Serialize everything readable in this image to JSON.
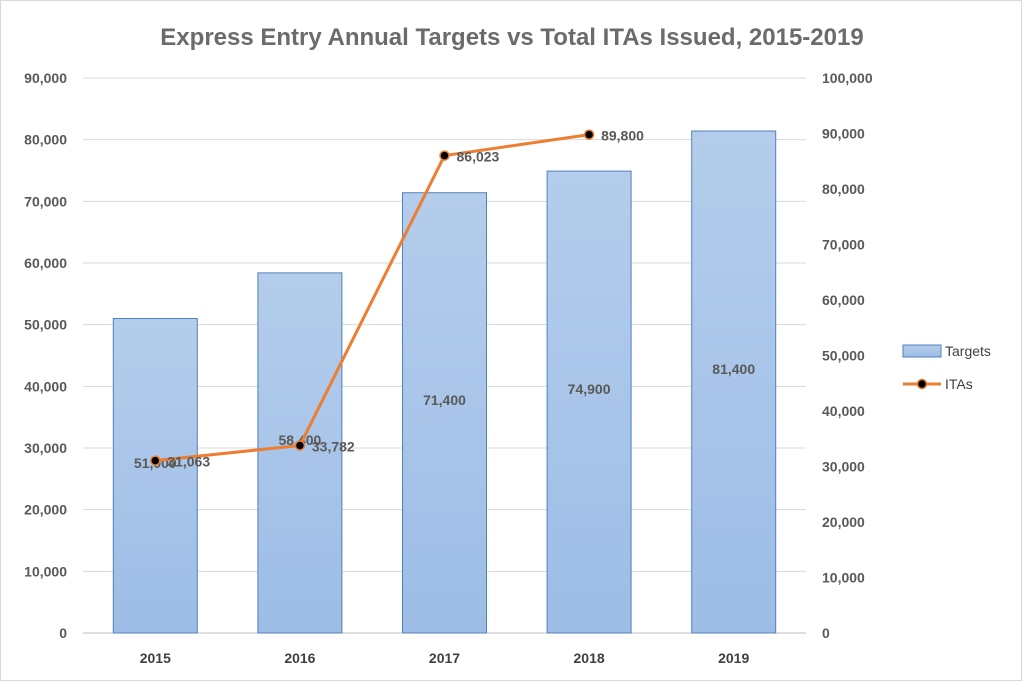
{
  "chart_data": {
    "type": "bar",
    "title": "Express Entry Annual Targets vs Total ITAs Issued, 2015-2019",
    "categories": [
      "2015",
      "2016",
      "2017",
      "2018",
      "2019"
    ],
    "series": [
      {
        "name": "Targets",
        "type": "bar",
        "axis": "left",
        "values": [
          51000,
          58400,
          71400,
          74900,
          81400
        ],
        "labels": [
          "51,000",
          "58,400",
          "71,400",
          "74,900",
          "81,400"
        ],
        "color": "#9dbde6",
        "edge_color": "#4f81bd"
      },
      {
        "name": "ITAs",
        "type": "line",
        "axis": "right",
        "values": [
          31063,
          33782,
          86023,
          89800,
          null
        ],
        "labels": [
          "31,063",
          "33,782",
          "86,023",
          "89,800",
          ""
        ],
        "color": "#ed7d31",
        "marker_color": "#000000"
      }
    ],
    "y_left": {
      "min": 0,
      "max": 90000,
      "step": 10000,
      "ticks": [
        "0",
        "10,000",
        "20,000",
        "30,000",
        "40,000",
        "50,000",
        "60,000",
        "70,000",
        "80,000",
        "90,000"
      ]
    },
    "y_right": {
      "min": 0,
      "max": 100000,
      "step": 10000,
      "ticks": [
        "0",
        "10,000",
        "20,000",
        "30,000",
        "40,000",
        "50,000",
        "60,000",
        "70,000",
        "80,000",
        "90,000",
        "100,000"
      ]
    },
    "grid": true,
    "legend_position": "right"
  }
}
